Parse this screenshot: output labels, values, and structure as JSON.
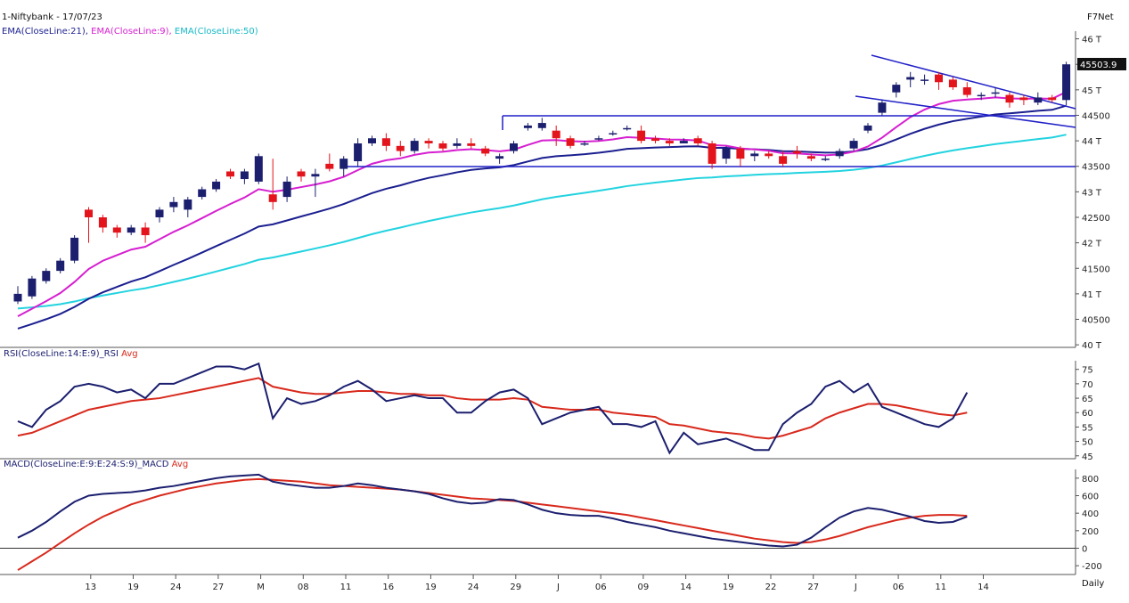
{
  "header": {
    "title": "1-Niftybank - 17/07/23",
    "brand": "F7Net",
    "ema21_label": "EMA(CloseLine:21),",
    "ema9_label": "EMA(CloseLine:9),",
    "ema50_label": "EMA(CloseLine:50)",
    "rsi_label": "RSI(CloseLine:14:E:9)_RSI",
    "rsi_avg_label": "Avg",
    "macd_label": "MACD(CloseLine:E:9:E:24:S:9)_MACD",
    "macd_avg_label": "Avg",
    "period": "Daily",
    "last_price": "45503.9"
  },
  "colors": {
    "bull": "#1b1f6e",
    "bear": "#e3141c",
    "ema21": "#1b1f8f",
    "ema9": "#d61fd0",
    "ema50": "#22d3e0",
    "rsi": "#1b1f6e",
    "rsi_avg": "#d8291c",
    "macd": "#1b1f6e",
    "macd_avg": "#d8291c",
    "trendline": "#2020c8"
  },
  "chart_data": [
    {
      "type": "candlestick",
      "yticks": [
        "46 T",
        "45500",
        "45 T",
        "44500",
        "44 T",
        "43500",
        "43 T",
        "42500",
        "42 T",
        "41500",
        "41 T",
        "40500",
        "40 T"
      ],
      "ylim": [
        39950,
        46150
      ],
      "xticks": [
        "13",
        "19",
        "24",
        "27",
        "M",
        "08",
        "11",
        "16",
        "19",
        "24",
        "29",
        "J",
        "06",
        "09",
        "14",
        "19",
        "22",
        "27",
        "J",
        "06",
        "11",
        "14"
      ],
      "xtick_index": [
        2,
        5,
        8,
        11,
        14,
        17,
        20,
        23,
        26,
        29,
        32,
        35,
        38,
        41,
        44,
        47,
        50,
        53,
        56,
        59,
        62,
        65
      ],
      "candles": [
        [
          40850,
          41000,
          40800,
          41150
        ],
        [
          40950,
          41300,
          40900,
          41350
        ],
        [
          41250,
          41450,
          41200,
          41500
        ],
        [
          41450,
          41650,
          41400,
          41700
        ],
        [
          41650,
          42100,
          41600,
          42150
        ],
        [
          42650,
          42500,
          42000,
          42700
        ],
        [
          42500,
          42300,
          42200,
          42550
        ],
        [
          42300,
          42200,
          42100,
          42350
        ],
        [
          42200,
          42300,
          42150,
          42350
        ],
        [
          42300,
          42150,
          42000,
          42400
        ],
        [
          42500,
          42650,
          42400,
          42700
        ],
        [
          42700,
          42800,
          42600,
          42900
        ],
        [
          42650,
          42850,
          42500,
          42900
        ],
        [
          42900,
          43050,
          42850,
          43100
        ],
        [
          43050,
          43200,
          43000,
          43250
        ],
        [
          43400,
          43300,
          43250,
          43450
        ],
        [
          43250,
          43400,
          43150,
          43450
        ],
        [
          43200,
          43700,
          43150,
          43750
        ],
        [
          42950,
          42800,
          42650,
          43650
        ],
        [
          42900,
          43200,
          42800,
          43300
        ],
        [
          43400,
          43300,
          43200,
          43450
        ],
        [
          43300,
          43350,
          42900,
          43450
        ],
        [
          43550,
          43450,
          43400,
          43750
        ],
        [
          43450,
          43650,
          43300,
          43700
        ],
        [
          43600,
          43950,
          43500,
          44050
        ],
        [
          43950,
          44050,
          43900,
          44100
        ],
        [
          44050,
          43900,
          43800,
          44150
        ],
        [
          43900,
          43800,
          43700,
          44000
        ],
        [
          43800,
          44000,
          43750,
          44050
        ],
        [
          44000,
          43950,
          43850,
          44050
        ],
        [
          43950,
          43850,
          43800,
          44000
        ],
        [
          43900,
          43950,
          43850,
          44050
        ],
        [
          43950,
          43900,
          43850,
          44050
        ],
        [
          43850,
          43750,
          43700,
          43900
        ],
        [
          43650,
          43700,
          43550,
          43750
        ],
        [
          43800,
          43950,
          43750,
          44000
        ],
        [
          44250,
          44300,
          44200,
          44350
        ],
        [
          44250,
          44350,
          44200,
          44450
        ],
        [
          44200,
          44050,
          43900,
          44300
        ],
        [
          44050,
          43900,
          43850,
          44100
        ],
        [
          43950,
          43950,
          43900,
          44000
        ],
        [
          44050,
          44050,
          44000,
          44100
        ],
        [
          44150,
          44150,
          44100,
          44200
        ],
        [
          44250,
          44250,
          44200,
          44300
        ],
        [
          44200,
          44000,
          43950,
          44300
        ],
        [
          44050,
          44000,
          43950,
          44100
        ],
        [
          44000,
          43950,
          43900,
          44050
        ],
        [
          43950,
          44000,
          43950,
          44050
        ],
        [
          44050,
          43950,
          43900,
          44100
        ],
        [
          43950,
          43550,
          43450,
          44000
        ],
        [
          43650,
          43850,
          43550,
          43900
        ],
        [
          43850,
          43650,
          43500,
          43900
        ],
        [
          43700,
          43750,
          43600,
          43800
        ],
        [
          43750,
          43700,
          43650,
          43800
        ],
        [
          43700,
          43550,
          43500,
          43800
        ],
        [
          43800,
          43750,
          43650,
          43900
        ],
        [
          43700,
          43650,
          43600,
          43750
        ],
        [
          43650,
          43650,
          43600,
          43700
        ],
        [
          43700,
          43800,
          43650,
          43850
        ],
        [
          43850,
          44000,
          43800,
          44050
        ],
        [
          44200,
          44300,
          44150,
          44350
        ],
        [
          44550,
          44750,
          44500,
          44800
        ],
        [
          44950,
          45100,
          44850,
          45150
        ],
        [
          45200,
          45250,
          45050,
          45350
        ],
        [
          45200,
          45200,
          45100,
          45300
        ],
        [
          45300,
          45150,
          45000,
          45350
        ],
        [
          45200,
          45050,
          45000,
          45250
        ],
        [
          45050,
          44900,
          44850,
          45150
        ],
        [
          44900,
          44900,
          44800,
          44950
        ],
        [
          44950,
          44950,
          44850,
          45050
        ],
        [
          44900,
          44750,
          44650,
          44950
        ],
        [
          44850,
          44800,
          44700,
          44900
        ],
        [
          44750,
          44850,
          44700,
          44950
        ],
        [
          44850,
          44800,
          44750,
          44900
        ],
        [
          44800,
          45500,
          44700,
          45550
        ]
      ]
    },
    {
      "type": "line",
      "title": "RSI(CloseLine:14:E:9)_RSI Avg",
      "yticks": [
        "75",
        "70",
        "65",
        "60",
        "55",
        "50",
        "45"
      ],
      "ylim": [
        44,
        78
      ],
      "series": [
        {
          "name": "RSI",
          "values": [
            57,
            55,
            61,
            64,
            69,
            70,
            69,
            67,
            68,
            65,
            70,
            70,
            72,
            74,
            76,
            76,
            75,
            77,
            58,
            65,
            63,
            64,
            66,
            69,
            71,
            68,
            64,
            65,
            66,
            65,
            65,
            60,
            60,
            64,
            67,
            68,
            65,
            56,
            58,
            60,
            61,
            62,
            56,
            56,
            55,
            57,
            46,
            53,
            49,
            50,
            51,
            49,
            47,
            47,
            56,
            60,
            63,
            69,
            71,
            67,
            70,
            62,
            60,
            58,
            56,
            55,
            58,
            67
          ]
        },
        {
          "name": "Avg",
          "values": [
            52,
            53,
            55,
            57,
            59,
            61,
            62,
            63,
            64,
            64.5,
            65,
            66,
            67,
            68,
            69,
            70,
            71,
            72,
            69,
            68,
            67,
            66.5,
            66.5,
            67,
            67.5,
            67.5,
            67,
            66.5,
            66.5,
            66,
            66,
            65,
            64.5,
            64.5,
            64.5,
            65,
            64.5,
            62,
            61.5,
            61,
            61,
            61,
            60,
            59.5,
            59,
            58.5,
            56,
            55.5,
            54.5,
            53.5,
            53,
            52.5,
            51.5,
            51,
            52,
            53.5,
            55,
            58,
            60,
            61.5,
            63,
            63,
            62.5,
            61.5,
            60.5,
            59.5,
            59,
            60
          ]
        }
      ]
    },
    {
      "type": "line",
      "title": "MACD(CloseLine:E:9:E:24:S:9)_MACD Avg",
      "yticks": [
        "800",
        "600",
        "400",
        "200",
        "0",
        "-200"
      ],
      "ylim": [
        -300,
        900
      ],
      "series": [
        {
          "name": "MACD",
          "values": [
            120,
            200,
            300,
            420,
            530,
            600,
            620,
            630,
            640,
            660,
            690,
            710,
            740,
            770,
            800,
            820,
            830,
            840,
            760,
            730,
            710,
            690,
            690,
            710,
            740,
            720,
            690,
            670,
            650,
            620,
            570,
            530,
            510,
            520,
            560,
            550,
            500,
            440,
            400,
            380,
            370,
            370,
            340,
            300,
            270,
            240,
            200,
            170,
            140,
            110,
            90,
            70,
            50,
            30,
            20,
            40,
            120,
            240,
            350,
            420,
            460,
            440,
            400,
            360,
            310,
            290,
            300,
            360
          ]
        },
        {
          "name": "Avg",
          "values": [
            -250,
            -150,
            -50,
            60,
            170,
            270,
            360,
            430,
            500,
            550,
            600,
            640,
            680,
            710,
            740,
            760,
            780,
            790,
            780,
            770,
            760,
            740,
            720,
            710,
            700,
            690,
            680,
            670,
            650,
            630,
            610,
            590,
            570,
            560,
            550,
            540,
            520,
            500,
            480,
            460,
            440,
            420,
            400,
            380,
            350,
            320,
            290,
            260,
            230,
            200,
            170,
            140,
            110,
            90,
            70,
            60,
            70,
            100,
            140,
            190,
            240,
            280,
            320,
            350,
            370,
            380,
            380,
            370
          ]
        }
      ]
    }
  ]
}
